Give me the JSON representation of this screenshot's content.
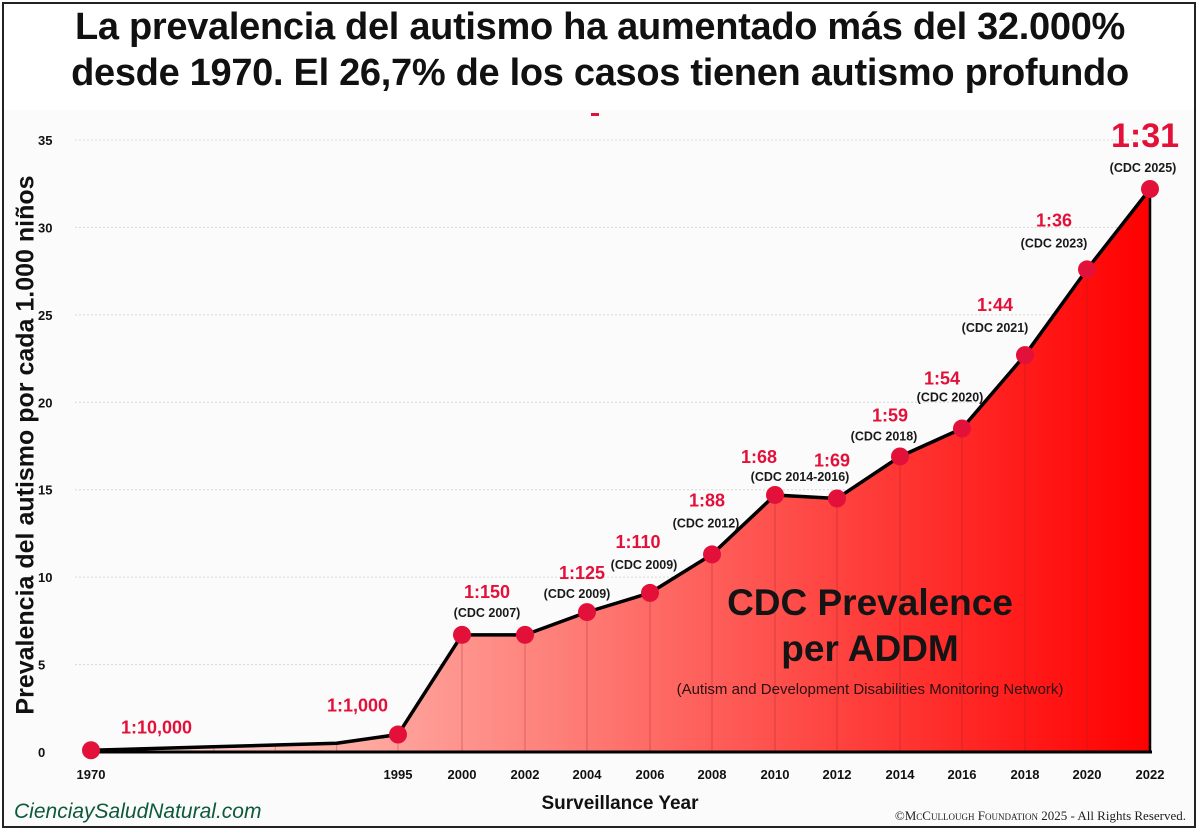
{
  "title_lines": [
    "La prevalencia del autismo ha aumentado más del 32.000%",
    "desde 1970. El 26,7% de los casos tienen autismo profundo"
  ],
  "watermark": "CienciaySaludNatural.com",
  "copyright": {
    "symbol": "©",
    "org": "McCullough Foundation",
    "rest": " 2025 - All Rights Reserved."
  },
  "overlay": {
    "title_line1": "CDC Prevalence",
    "title_line2": "per ADDM",
    "subtitle": "(Autism and Development Disabilities Monitoring Network)"
  },
  "colors": {
    "point": "#e3103a",
    "label": "#e3103a",
    "line": "#000000",
    "fill_start": "#fde3d8",
    "fill_end": "#ff0000"
  },
  "chart_data": {
    "type": "area",
    "title": "La prevalencia del autismo ha aumentado más del 32.000% desde 1970. El 26,7% de los casos tienen autismo profundo",
    "xlabel": "Surveillance Year",
    "ylabel": "Prevalencia del autismo por cada 1.000 niños",
    "ylim": [
      0,
      35
    ],
    "yticks": [
      0,
      5,
      10,
      15,
      20,
      25,
      30,
      35
    ],
    "grid": true,
    "xticks": [
      "1970",
      "1995",
      "2000",
      "2002",
      "2004",
      "2006",
      "2008",
      "2010",
      "2012",
      "2014",
      "2016",
      "2018",
      "2020",
      "2022"
    ],
    "points": [
      {
        "x": "1970",
        "y": 0.1,
        "ratio": "1:10,000",
        "source": ""
      },
      {
        "x": "1995",
        "y": 1.0,
        "ratio": "1:1,000",
        "source": ""
      },
      {
        "x": "2000",
        "y": 6.7,
        "ratio": "1:150",
        "source": "(CDC 2007)"
      },
      {
        "x": "2002",
        "y": 6.7,
        "ratio": "",
        "source": ""
      },
      {
        "x": "2004",
        "y": 8.0,
        "ratio": "1:125",
        "source": "(CDC 2009)"
      },
      {
        "x": "2006",
        "y": 9.1,
        "ratio": "1:110",
        "source": "(CDC 2009)"
      },
      {
        "x": "2008",
        "y": 11.3,
        "ratio": "1:88",
        "source": "(CDC 2012)"
      },
      {
        "x": "2010",
        "y": 14.7,
        "ratio": "1:68",
        "source": "(CDC 2014-2016)"
      },
      {
        "x": "2012",
        "y": 14.5,
        "ratio": "1:69",
        "source": ""
      },
      {
        "x": "2014",
        "y": 16.9,
        "ratio": "1:59",
        "source": "(CDC 2018)"
      },
      {
        "x": "2016",
        "y": 18.5,
        "ratio": "1:54",
        "source": "(CDC 2020)"
      },
      {
        "x": "2018",
        "y": 22.7,
        "ratio": "1:44",
        "source": "(CDC 2021)"
      },
      {
        "x": "2020",
        "y": 27.6,
        "ratio": "1:36",
        "source": "(CDC 2023)"
      },
      {
        "x": "2022",
        "y": 32.2,
        "ratio": "1:31",
        "source": "(CDC 2025)"
      }
    ],
    "unmarked_line_points": [
      {
        "x": 1980,
        "y": 0.3
      },
      {
        "x": 1985,
        "y": 0.4
      },
      {
        "x": 1990,
        "y": 0.5
      }
    ]
  }
}
